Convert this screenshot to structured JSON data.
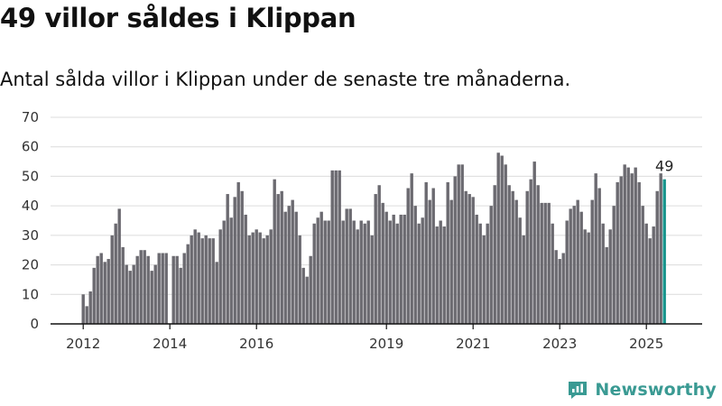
{
  "title": "49 villor såldes i Klippan",
  "subtitle": "Antal sålda villor i Klippan under de senaste tre månaderna.",
  "brand": {
    "name": "Newsworthy",
    "icon": "newsworthy-logo-icon",
    "color": "#3a9a93"
  },
  "chart_data": {
    "type": "bar",
    "title": "",
    "xlabel": "",
    "ylabel": "",
    "ylim": [
      0,
      70
    ],
    "yticks": [
      0,
      10,
      20,
      30,
      40,
      50,
      60,
      70
    ],
    "grid": true,
    "legend": "none",
    "bar_color": "#6b6a70",
    "highlight_color": "#17948c",
    "start": "2012-01",
    "frequency": "monthly",
    "xtick_labels": [
      {
        "label": "2012",
        "date": "2012-01"
      },
      {
        "label": "2014",
        "date": "2014-01"
      },
      {
        "label": "2016",
        "date": "2016-01"
      },
      {
        "label": "2019",
        "date": "2019-01"
      },
      {
        "label": "2021",
        "date": "2021-01"
      },
      {
        "label": "2023",
        "date": "2023-01"
      },
      {
        "label": "2025",
        "date": "2025-01"
      }
    ],
    "values": [
      10,
      6,
      11,
      19,
      23,
      24,
      21,
      22,
      30,
      34,
      39,
      26,
      20,
      18,
      20,
      23,
      25,
      25,
      23,
      18,
      20,
      24,
      24,
      24,
      null,
      23,
      23,
      19,
      24,
      27,
      30,
      32,
      31,
      29,
      30,
      29,
      29,
      21,
      32,
      35,
      44,
      36,
      43,
      48,
      45,
      37,
      30,
      31,
      32,
      31,
      29,
      30,
      32,
      49,
      44,
      45,
      38,
      40,
      42,
      38,
      30,
      19,
      16,
      23,
      34,
      36,
      38,
      35,
      35,
      52,
      52,
      52,
      35,
      39,
      39,
      35,
      32,
      35,
      34,
      35,
      30,
      44,
      47,
      41,
      38,
      35,
      37,
      34,
      37,
      37,
      46,
      51,
      40,
      34,
      36,
      48,
      42,
      46,
      33,
      35,
      33,
      48,
      42,
      50,
      54,
      54,
      45,
      44,
      43,
      37,
      34,
      30,
      34,
      40,
      47,
      58,
      57,
      54,
      47,
      45,
      42,
      36,
      30,
      45,
      49,
      55,
      47,
      41,
      41,
      41,
      34,
      25,
      22,
      24,
      35,
      39,
      40,
      42,
      38,
      32,
      31,
      42,
      51,
      46,
      34,
      26,
      32,
      40,
      48,
      50,
      54,
      53,
      51,
      53,
      48,
      40,
      34,
      29,
      33,
      45,
      51,
      49
    ],
    "highlight_last": 1,
    "data_labels": [
      {
        "label": "49",
        "index_from_end": 1
      }
    ]
  }
}
